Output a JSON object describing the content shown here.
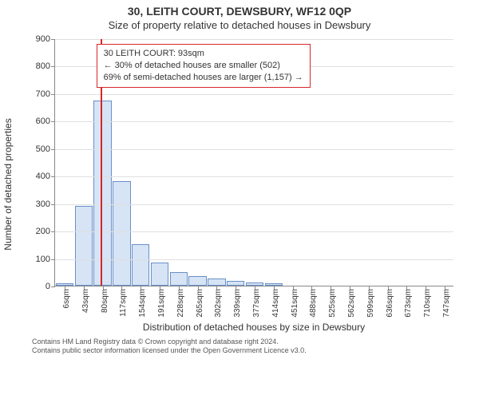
{
  "title_main": "30, LEITH COURT, DEWSBURY, WF12 0QP",
  "title_sub": "Size of property relative to detached houses in Dewsbury",
  "ylabel": "Number of detached properties",
  "xlabel": "Distribution of detached houses by size in Dewsbury",
  "footer_line1": "Contains HM Land Registry data © Crown copyright and database right 2024.",
  "footer_line2": "Contains public sector information licensed under the Open Government Licence v3.0.",
  "chart": {
    "type": "histogram",
    "ylim_max": 900,
    "ytick_step": 100,
    "background_color": "#ffffff",
    "grid_color": "#e0e0e0",
    "axis_color": "#888888",
    "bar_fill": "#d6e4f5",
    "bar_border": "#6a8fc7",
    "tick_fontsize": 11,
    "label_fontsize": 12,
    "categories": [
      "6sqm",
      "43sqm",
      "80sqm",
      "117sqm",
      "154sqm",
      "191sqm",
      "228sqm",
      "265sqm",
      "302sqm",
      "339sqm",
      "377sqm",
      "414sqm",
      "451sqm",
      "488sqm",
      "525sqm",
      "562sqm",
      "599sqm",
      "636sqm",
      "673sqm",
      "710sqm",
      "747sqm"
    ],
    "values": [
      10,
      290,
      675,
      380,
      150,
      85,
      50,
      35,
      25,
      18,
      12,
      8,
      0,
      0,
      0,
      0,
      0,
      0,
      0,
      0,
      0
    ],
    "bar_width_ratio": 0.94,
    "vline": {
      "value_sqm": 93,
      "color": "#d62728",
      "width": 2
    },
    "info_box": {
      "line1": "30 LEITH COURT: 93sqm",
      "line2": "← 30% of detached houses are smaller (502)",
      "line3": "69% of semi-detached houses are larger (1,157) →",
      "border_color": "#d62728",
      "background_color": "#ffffff",
      "fontsize": 11,
      "left_category_index": 2
    }
  }
}
